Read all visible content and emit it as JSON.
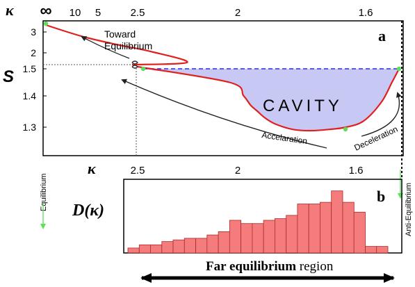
{
  "chart_data": [
    {
      "panel_label": "a",
      "type": "line",
      "top_axis_symbol": "κ",
      "top_ticks": [
        "∞",
        "10",
        "5",
        "2.5",
        "2",
        "1.6"
      ],
      "y_axis_label": "S",
      "y_ticks": [
        "3",
        "2",
        "1.5",
        "1.4",
        "1.3"
      ],
      "series": [
        {
          "x_kappa_inverse_fraction": [
            0.0,
            0.1,
            0.2,
            0.3,
            0.4,
            0.45,
            0.52,
            0.56,
            0.58,
            0.6,
            0.62,
            0.65,
            0.7,
            0.75,
            0.8,
            0.85,
            0.9,
            0.95,
            0.98,
            1.0
          ],
          "S": [
            3.3,
            2.8,
            2.4,
            2.05,
            1.7,
            1.55,
            1.45,
            1.4,
            1.37,
            1.35,
            1.33,
            1.31,
            1.29,
            1.285,
            1.29,
            1.3,
            1.32,
            1.38,
            1.45,
            1.5
          ]
        }
      ],
      "cavity_level_S": 1.5,
      "cavity_label": "CAVITY",
      "annotations": {
        "toward_line1": "Toward",
        "toward_line2": "Equilibrium",
        "acceleration": "Accelaration",
        "deceleration": "Deceleration"
      }
    },
    {
      "panel_label": "b",
      "type": "bar",
      "top_axis_symbol": "κ",
      "top_ticks": [
        "2.5",
        "2",
        "1.6"
      ],
      "y_axis_label": "D(κ)",
      "values": [
        3,
        5,
        5,
        7,
        8,
        9,
        9,
        11,
        13,
        20,
        18,
        18,
        20,
        21,
        23,
        30,
        30,
        31,
        38,
        31,
        25,
        4,
        4
      ]
    }
  ],
  "side_labels": {
    "left": "Equilibrium",
    "right": "Anti-Equilibrium"
  },
  "bottom_caption": {
    "bold": "Far equilibrium",
    "rest": " region"
  },
  "colors": {
    "curve": "#e02020",
    "cavity_fill": "#c8c8f4",
    "cavity_line": "#2c2cd8",
    "bar_fill": "#f47c7c",
    "bar_stroke": "#b02828",
    "marker": "#5ce05c"
  }
}
